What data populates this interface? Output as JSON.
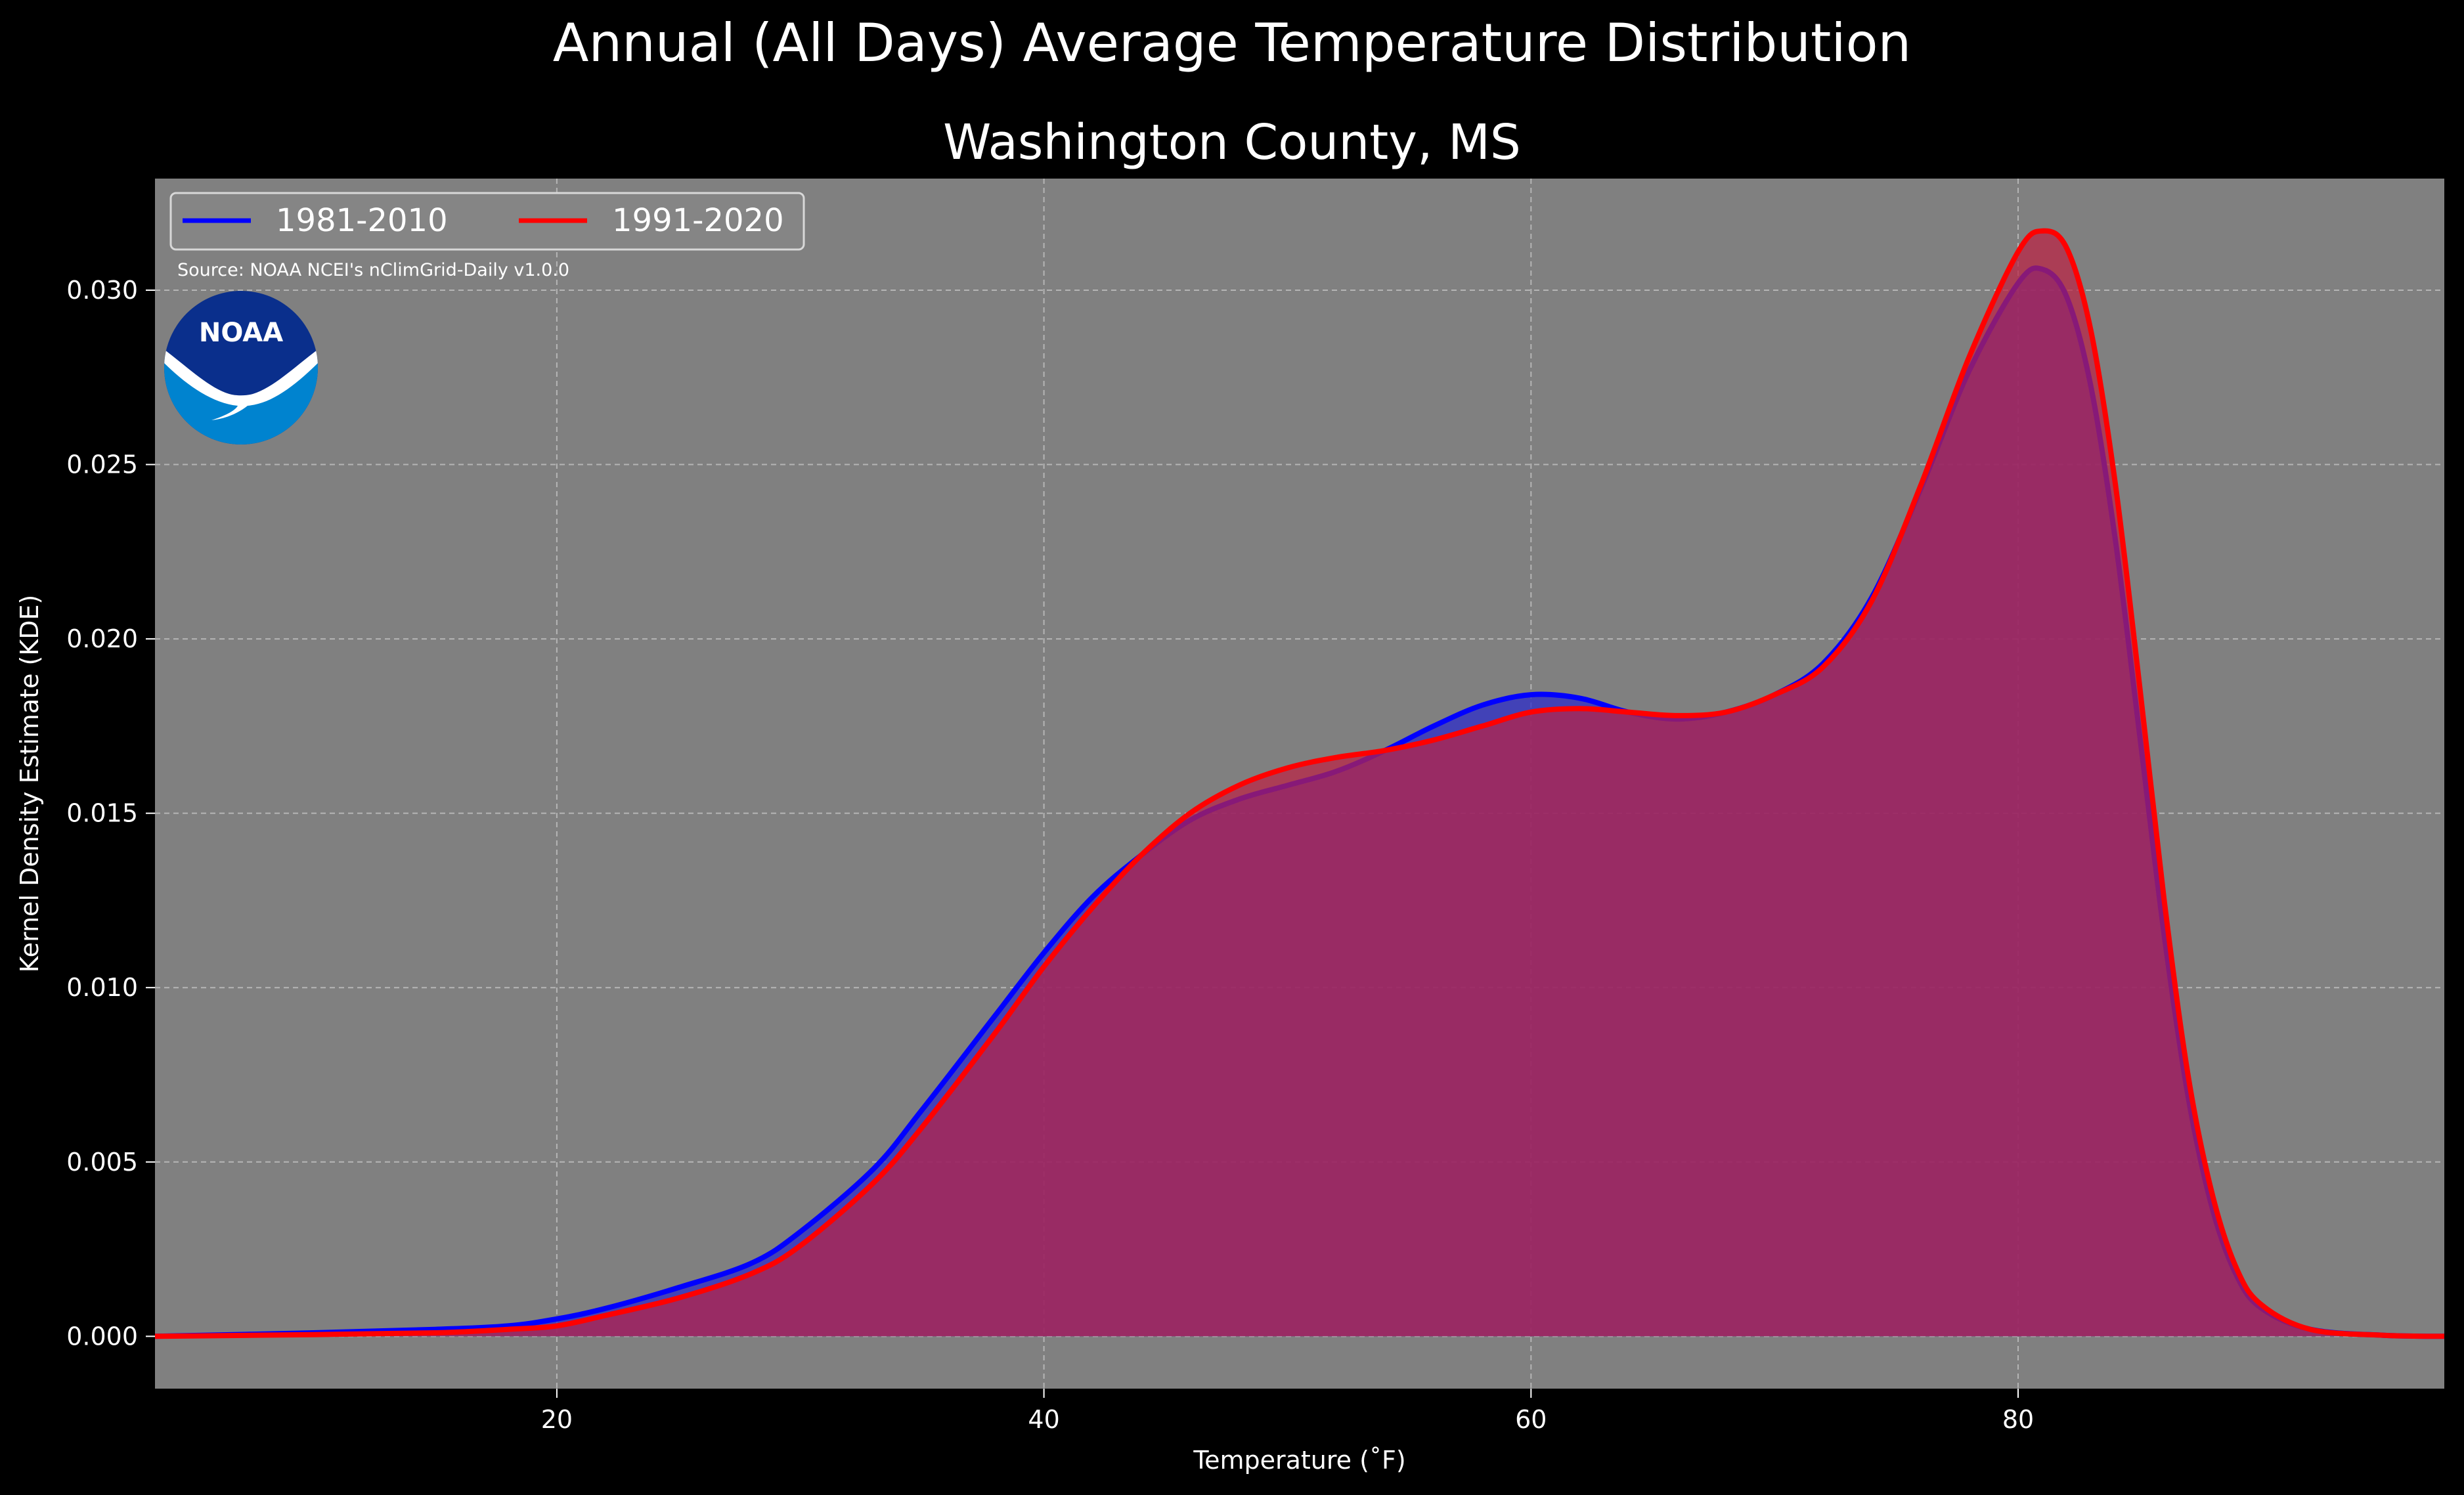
{
  "chart_data": {
    "type": "area",
    "suptitle": "Annual (All Days) Average Temperature Distribution",
    "title": "Washington County, MS",
    "xlabel": "Temperature ($^\\circ$F)",
    "xlabel_display": "Temperature (˚F)",
    "ylabel": "Kernel Density Estimate (KDE)",
    "xlim": [
      3.5,
      97.5
    ],
    "ylim": [
      -0.0015,
      0.0332
    ],
    "xticks": [
      20,
      40,
      60,
      80
    ],
    "yticks": [
      0.0,
      0.005,
      0.01,
      0.015,
      0.02,
      0.025,
      0.03
    ],
    "ytick_labels": [
      "0.000",
      "0.005",
      "0.010",
      "0.015",
      "0.020",
      "0.025",
      "0.030"
    ],
    "grid": true,
    "legend_position": "top-left",
    "source": "Source: NOAA NCEI's nClimGrid-Daily v1.0.0",
    "logo_text": "NOAA",
    "background_color": "#808080",
    "figure_color": "#000000",
    "series": [
      {
        "name": "1981-2010",
        "color": "#0000ff",
        "fill": "#2a2acc",
        "x": [
          3.5,
          10,
          15,
          18,
          20,
          22,
          25,
          28,
          30,
          33,
          35,
          38,
          40,
          42,
          44,
          46,
          48,
          50,
          52,
          54,
          56,
          58,
          60,
          62,
          64,
          66,
          68,
          70,
          72,
          74,
          76,
          78,
          80,
          81,
          82,
          83,
          84,
          85,
          86,
          87,
          88,
          89,
          90,
          92,
          95,
          97.5
        ],
        "y": [
          0.0,
          0.0001,
          0.0002,
          0.0003,
          0.0005,
          0.0008,
          0.0014,
          0.0021,
          0.003,
          0.0048,
          0.0065,
          0.0092,
          0.011,
          0.0126,
          0.0138,
          0.0148,
          0.0154,
          0.0158,
          0.0162,
          0.0168,
          0.0175,
          0.0181,
          0.0184,
          0.0183,
          0.0179,
          0.0177,
          0.0179,
          0.0184,
          0.0193,
          0.0212,
          0.0243,
          0.0277,
          0.0302,
          0.0306,
          0.0298,
          0.0272,
          0.0228,
          0.0172,
          0.0115,
          0.0068,
          0.0036,
          0.0017,
          0.0008,
          0.0002,
          3e-05,
          0.0
        ]
      },
      {
        "name": "1991-2020",
        "color": "#ff0000",
        "fill": "#bb2244",
        "x": [
          3.5,
          10,
          15,
          18,
          20,
          22,
          25,
          28,
          30,
          33,
          35,
          38,
          40,
          42,
          44,
          46,
          48,
          50,
          52,
          54,
          56,
          58,
          60,
          62,
          64,
          66,
          68,
          70,
          72,
          74,
          76,
          78,
          80,
          81,
          82,
          83,
          84,
          85,
          86,
          87,
          88,
          89,
          90,
          92,
          95,
          97.5
        ],
        "y": [
          0.0,
          5e-05,
          0.0001,
          0.0002,
          0.0003,
          0.0006,
          0.0011,
          0.0018,
          0.0026,
          0.0044,
          0.006,
          0.0087,
          0.0106,
          0.0123,
          0.0138,
          0.015,
          0.0158,
          0.0163,
          0.0166,
          0.0168,
          0.0171,
          0.0175,
          0.0179,
          0.018,
          0.0179,
          0.0178,
          0.0179,
          0.0184,
          0.0192,
          0.0211,
          0.0244,
          0.0281,
          0.0311,
          0.0317,
          0.0312,
          0.0288,
          0.0244,
          0.0186,
          0.0125,
          0.0074,
          0.004,
          0.0019,
          0.0009,
          0.0002,
          3e-05,
          0.0
        ]
      }
    ]
  }
}
